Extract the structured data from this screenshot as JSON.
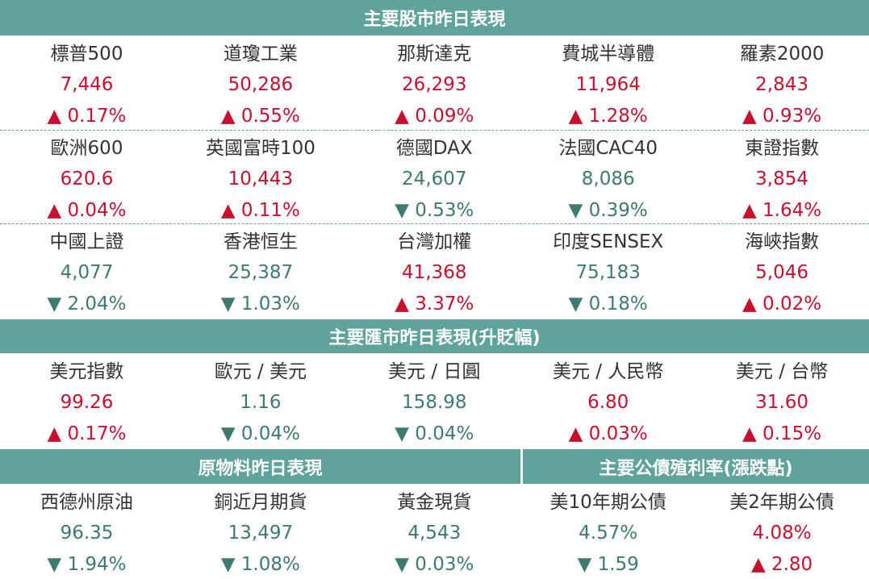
{
  "stocks": {
    "title": "主要股市昨日表現",
    "rows": [
      [
        {
          "name": "標普500",
          "value": "7,446",
          "change": "▲ 0.17%"
        },
        {
          "name": "道瓊工業",
          "value": "50,286",
          "change": "▲ 0.55%"
        },
        {
          "name": "那斯達克",
          "value": "26,293",
          "change": "▲ 0.09%"
        },
        {
          "name": "費城半導體",
          "value": "11,964",
          "change": "▲ 1.28%"
        },
        {
          "name": "羅素2000",
          "value": "2,843",
          "change": "▲ 0.93%"
        }
      ],
      [
        {
          "name": "歐洲600",
          "value": "620.6",
          "change": "▲ 0.04%"
        },
        {
          "name": "英國富時100",
          "value": "10,443",
          "change": "▲ 0.11%"
        },
        {
          "name": "德國DAX",
          "value": "24,607",
          "change": "▼ 0.53%"
        },
        {
          "name": "法國CAC40",
          "value": "8,086",
          "change": "▼ 0.39%"
        },
        {
          "name": "東證指數",
          "value": "3,854",
          "change": "▲ 1.64%"
        }
      ],
      [
        {
          "name": "中國上證",
          "value": "4,077",
          "change": "▼ 2.04%"
        },
        {
          "name": "香港恒生",
          "value": "25,387",
          "change": "▼ 1.03%"
        },
        {
          "name": "台灣加權",
          "value": "41,368",
          "change": "▲ 3.37%"
        },
        {
          "name": "印度SENSEX",
          "value": "75,183",
          "change": "▼ 0.18%"
        },
        {
          "name": "海峽指數",
          "value": "5,046",
          "change": "▲ 0.02%"
        }
      ]
    ]
  },
  "fx": {
    "title": "主要匯市昨日表現(升貶幅)",
    "items": [
      {
        "name": "美元指數",
        "value": "99.26",
        "change": "▲ 0.17%"
      },
      {
        "name": "歐元 / 美元",
        "value": "1.16",
        "change": "▼ 0.04%"
      },
      {
        "name": "美元 / 日圓",
        "value": "158.98",
        "change": "▼ 0.04%"
      },
      {
        "name": "美元 / 人民幣",
        "value": "6.80",
        "change": "▲ 0.03%"
      },
      {
        "name": "美元 / 台幣",
        "value": "31.60",
        "change": "▲ 0.15%"
      }
    ]
  },
  "commodities": {
    "title": "原物料昨日表現",
    "items": [
      {
        "name": "西德州原油",
        "value": "96.35",
        "change": "▼ 1.94%"
      },
      {
        "name": "銅近月期貨",
        "value": "13,497",
        "change": "▼ 1.08%"
      },
      {
        "name": "黃金現貨",
        "value": "4,543",
        "change": "▼ 0.03%"
      }
    ]
  },
  "bonds": {
    "title": "主要公債殖利率(漲跌點)",
    "items": [
      {
        "name": "美10年期公債",
        "value": "4.57%",
        "change": "▼ 1.59"
      },
      {
        "name": "美2年期公債",
        "value": "4.08%",
        "change": "▲ 2.80"
      }
    ]
  }
}
